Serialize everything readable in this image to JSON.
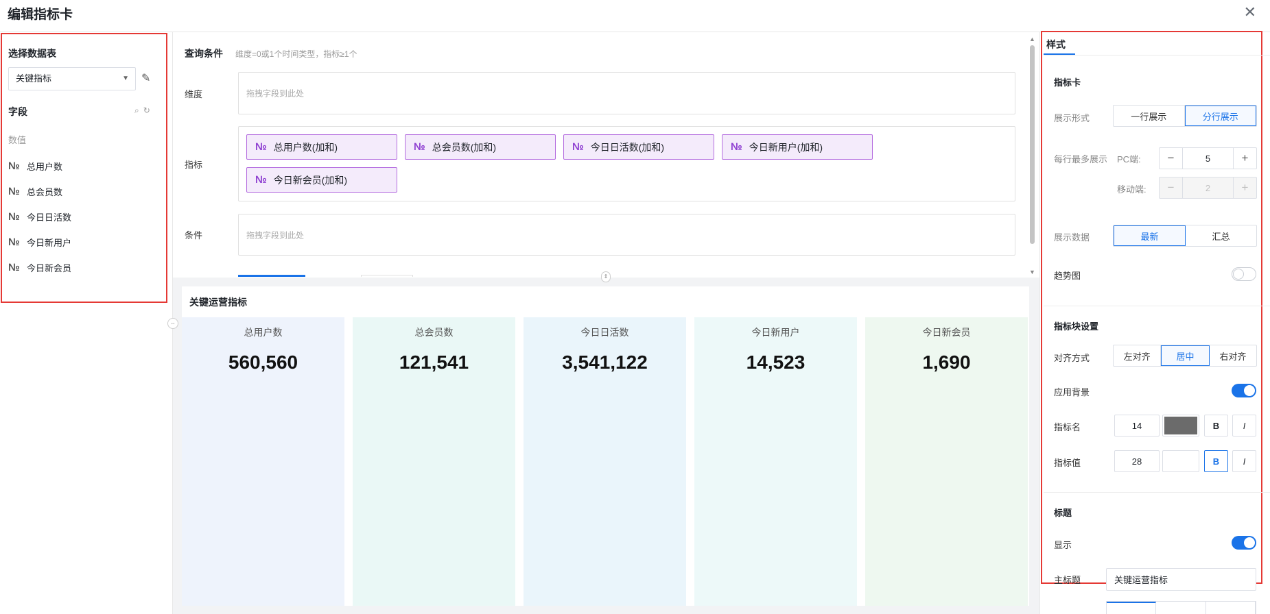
{
  "dialog": {
    "title": "编辑指标卡",
    "close_label": "✕"
  },
  "left": {
    "title": "选择数据表",
    "table_select": "关键指标",
    "fields_title": "字段",
    "group": "数值",
    "field_icon": "№",
    "fields": [
      "总用户数",
      "总会员数",
      "今日日活数",
      "今日新用户",
      "今日新会员"
    ]
  },
  "query": {
    "title": "查询条件",
    "hint": "维度=0或1个时间类型，指标≥1个",
    "dimension_label": "维度",
    "dimension_placeholder": "拖拽字段到此处",
    "metric_label": "指标",
    "metrics": [
      "总用户数(加和)",
      "总会员数(加和)",
      "今日日活数(加和)",
      "今日新用户(加和)",
      "今日新会员(加和)"
    ],
    "condition_label": "条件",
    "condition_placeholder": "拖拽字段到此处"
  },
  "preview": {
    "title": "关键运营指标",
    "metrics": [
      {
        "name": "总用户数",
        "value": "560,560",
        "bg": "#eef3fc"
      },
      {
        "name": "总会员数",
        "value": "121,541",
        "bg": "#eaf8f6"
      },
      {
        "name": "今日日活数",
        "value": "3,541,122",
        "bg": "#eaf5fb"
      },
      {
        "name": "今日新用户",
        "value": "14,523",
        "bg": "#edf9f9"
      },
      {
        "name": "今日新会员",
        "value": "1,690",
        "bg": "#eef8f0"
      }
    ]
  },
  "style": {
    "tab": "样式",
    "card_section": "指标卡",
    "display_form_label": "展示形式",
    "display_form_options": [
      "一行展示",
      "分行展示"
    ],
    "per_row_label": "每行最多展示",
    "pc_label": "PC端:",
    "pc_value": "5",
    "mobile_label": "移动端:",
    "mobile_value": "2",
    "display_data_label": "展示数据",
    "display_data_options": [
      "最新",
      "汇总"
    ],
    "trend_label": "趋势图",
    "block_section": "指标块设置",
    "align_label": "对齐方式",
    "align_options": [
      "左对齐",
      "居中",
      "右对齐"
    ],
    "apply_bg_label": "应用背景",
    "name_label": "指标名",
    "name_size": "14",
    "name_color": "#6b6b6b",
    "bold": "B",
    "italic": "I",
    "value_label": "指标值",
    "value_size": "28",
    "title_section": "标题",
    "show_label": "显示",
    "main_title_label": "主标题",
    "main_title_value": "关键运营指标",
    "minus": "−",
    "plus": "+"
  }
}
